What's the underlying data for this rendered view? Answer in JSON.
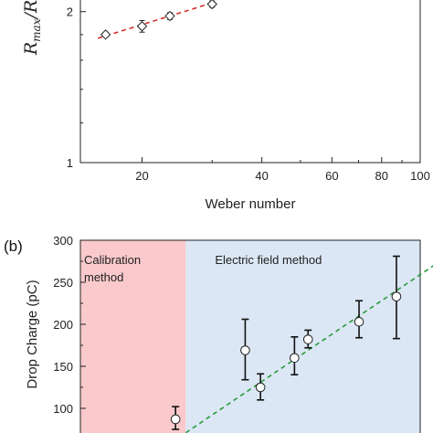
{
  "chart_data": [
    {
      "panel": "",
      "type": "scatter",
      "xscale": "log",
      "yscale": "log",
      "xlabel": "Weber number",
      "ylabel": "R_max / R",
      "ylabel_parts": [
        "R",
        "max",
        "/R"
      ],
      "xlim": [
        14,
        100
      ],
      "ylim": [
        1,
        2.2
      ],
      "xticks": [
        20,
        40,
        60,
        80,
        100
      ],
      "xtick_labels": [
        "20",
        "40",
        "60",
        "80",
        "100"
      ],
      "yticks": [
        1,
        2
      ],
      "ytick_labels": [
        "1",
        "2"
      ],
      "grid": false,
      "series": [
        {
          "marker": "diamond",
          "x": [
            16.2,
            20.0,
            23.5,
            30.0
          ],
          "y": [
            1.8,
            1.87,
            1.96,
            2.07
          ],
          "err": [
            0.02,
            0.05,
            0.03,
            0.03
          ]
        }
      ],
      "fit": {
        "style": "dashed",
        "color": "#d62a2a",
        "x": [
          15.5,
          30.5
        ],
        "y": [
          1.77,
          2.09
        ]
      }
    },
    {
      "panel": "(b)",
      "type": "scatter",
      "xlabel": "",
      "ylabel": "Drop Charge (pC)",
      "xlim": [
        0,
        10
      ],
      "ylim": [
        50,
        300
      ],
      "yticks": [
        100,
        150,
        200,
        250,
        300
      ],
      "ytick_labels": [
        "100",
        "150",
        "200",
        "250",
        "300"
      ],
      "grid": false,
      "regions": [
        {
          "label_lines": [
            "Calibration",
            "method"
          ],
          "x": [
            0,
            3.1
          ],
          "color": "#f9c9cb"
        },
        {
          "label_lines": [
            "Electric field method"
          ],
          "x": [
            3.1,
            10
          ],
          "color": "#dbe7f5"
        }
      ],
      "series": [
        {
          "marker": "circle",
          "x": [
            2.8,
            4.85,
            5.3,
            6.3,
            6.7,
            8.2,
            9.3
          ],
          "y": [
            87,
            169,
            125,
            160,
            182,
            203,
            233
          ],
          "err_low": [
            12,
            35,
            15,
            20,
            10,
            19,
            50
          ],
          "err_high": [
            15,
            37,
            16,
            25,
            11,
            25,
            48
          ]
        }
      ],
      "fit": {
        "style": "dashed",
        "color": "#2a9a3a",
        "x": [
          2.7,
          10.4
        ],
        "y": [
          60,
          270
        ]
      }
    }
  ]
}
